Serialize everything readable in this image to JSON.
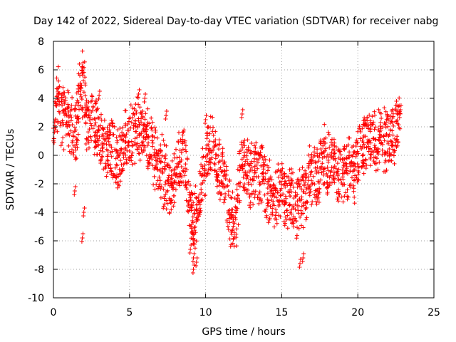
{
  "chart_data": {
    "type": "scatter",
    "title": "Day 142 of 2022, Sidereal Day-to-day VTEC variation (SDTVAR) for receiver nabg",
    "xlabel": "GPS time / hours",
    "ylabel": "SDTVAR / TECUs",
    "xlim": [
      0,
      25
    ],
    "ylim": [
      -10,
      8
    ],
    "xticks": [
      "0",
      "5",
      "10",
      "15",
      "20",
      "25"
    ],
    "yticks": [
      "8",
      "6",
      "4",
      "2",
      "0",
      "-2",
      "-4",
      "-6",
      "-8",
      "-10"
    ],
    "grid": true,
    "marker": "+",
    "series": [
      {
        "name": "SDTVAR",
        "color": "#ff0000",
        "trend": [
          [
            0.0,
            2.8
          ],
          [
            0.3,
            4.0
          ],
          [
            0.6,
            2.6
          ],
          [
            0.9,
            2.9
          ],
          [
            1.2,
            2.2
          ],
          [
            1.5,
            1.8
          ],
          [
            1.7,
            4.8
          ],
          [
            2.0,
            5.0
          ],
          [
            2.2,
            1.8
          ],
          [
            2.5,
            2.2
          ],
          [
            2.8,
            2.0
          ],
          [
            3.1,
            1.2
          ],
          [
            3.4,
            0.2
          ],
          [
            3.7,
            0.6
          ],
          [
            4.0,
            0.6
          ],
          [
            4.3,
            -0.3
          ],
          [
            4.6,
            0.8
          ],
          [
            4.9,
            1.2
          ],
          [
            5.2,
            1.5
          ],
          [
            5.5,
            2.0
          ],
          [
            5.8,
            1.4
          ],
          [
            6.1,
            1.0
          ],
          [
            6.4,
            0.6
          ],
          [
            6.7,
            0.0
          ],
          [
            7.0,
            -0.8
          ],
          [
            7.3,
            -1.5
          ],
          [
            7.6,
            -2.0
          ],
          [
            7.9,
            -1.8
          ],
          [
            8.2,
            -0.6
          ],
          [
            8.5,
            0.4
          ],
          [
            8.8,
            -2.0
          ],
          [
            9.1,
            -4.5
          ],
          [
            9.3,
            -4.8
          ],
          [
            9.6,
            -2.5
          ],
          [
            9.9,
            -1.0
          ],
          [
            10.2,
            0.6
          ],
          [
            10.5,
            0.4
          ],
          [
            10.8,
            -0.5
          ],
          [
            11.1,
            -1.2
          ],
          [
            11.4,
            -2.5
          ],
          [
            11.7,
            -4.3
          ],
          [
            12.0,
            -4.5
          ],
          [
            12.3,
            -0.5
          ],
          [
            12.6,
            0.0
          ],
          [
            12.9,
            -1.8
          ],
          [
            13.2,
            -1.0
          ],
          [
            13.5,
            -1.5
          ],
          [
            13.8,
            -1.2
          ],
          [
            14.1,
            -2.5
          ],
          [
            14.4,
            -2.7
          ],
          [
            14.7,
            -3.0
          ],
          [
            15.0,
            -2.4
          ],
          [
            15.3,
            -3.2
          ],
          [
            15.6,
            -2.5
          ],
          [
            15.9,
            -3.8
          ],
          [
            16.2,
            -2.8
          ],
          [
            16.5,
            -3.3
          ],
          [
            16.8,
            -1.6
          ],
          [
            17.1,
            -1.5
          ],
          [
            17.4,
            -1.2
          ],
          [
            17.7,
            -0.3
          ],
          [
            18.0,
            -0.5
          ],
          [
            18.3,
            -1.0
          ],
          [
            18.6,
            -1.4
          ],
          [
            18.9,
            -1.6
          ],
          [
            19.2,
            -1.6
          ],
          [
            19.5,
            -1.0
          ],
          [
            19.8,
            -1.2
          ],
          [
            20.1,
            0.5
          ],
          [
            20.4,
            0.8
          ],
          [
            20.7,
            0.9
          ],
          [
            21.0,
            1.0
          ],
          [
            21.3,
            0.7
          ],
          [
            21.6,
            0.8
          ],
          [
            21.9,
            1.2
          ],
          [
            22.2,
            1.5
          ],
          [
            22.5,
            1.6
          ],
          [
            22.8,
            2.0
          ]
        ],
        "outliers": [
          [
            1.9,
            6.2
          ],
          [
            2.0,
            -4.0
          ],
          [
            1.9,
            -5.8
          ],
          [
            1.4,
            -2.5
          ],
          [
            5.6,
            4.3
          ],
          [
            6.0,
            4.0
          ],
          [
            7.4,
            2.8
          ],
          [
            9.2,
            -8.0
          ],
          [
            9.2,
            -7.2
          ],
          [
            9.0,
            -6.6
          ],
          [
            9.4,
            -7.5
          ],
          [
            10.0,
            2.5
          ],
          [
            12.4,
            2.9
          ],
          [
            13.6,
            0.2
          ],
          [
            16.2,
            -7.6
          ],
          [
            16.4,
            -7.2
          ],
          [
            22.5,
            3.5
          ],
          [
            22.8,
            3.2
          ],
          [
            21.5,
            2.3
          ],
          [
            3.0,
            4.2
          ]
        ]
      }
    ]
  }
}
